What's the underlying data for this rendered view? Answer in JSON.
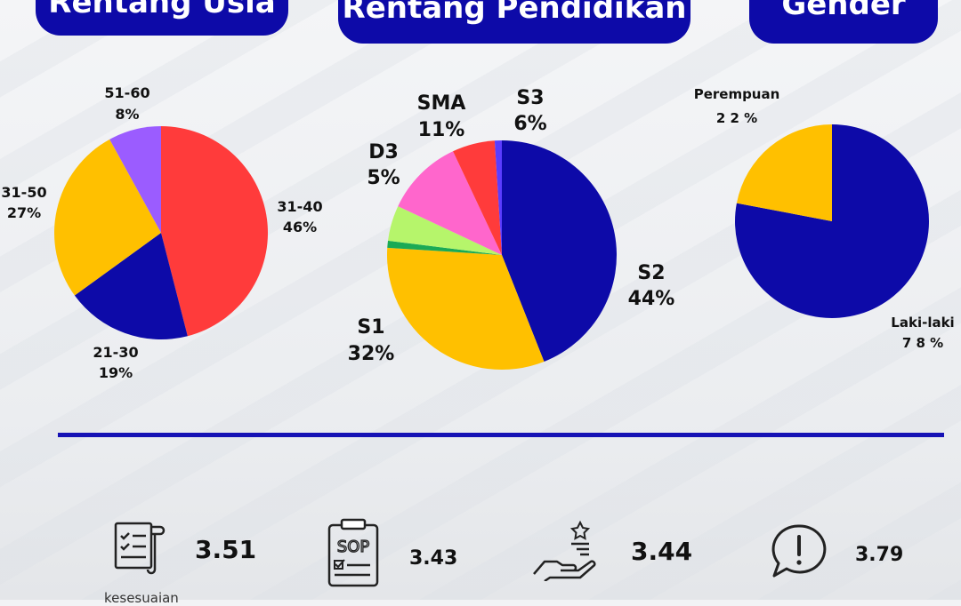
{
  "headers": {
    "age": "Rentang Usia",
    "education": "Rentang Pendidikan",
    "gender": "Gender"
  },
  "chart_data": [
    {
      "type": "pie",
      "title": "Rentang Usia",
      "categories": [
        "31-40",
        "21-30",
        "31-50",
        "51-60"
      ],
      "values": [
        46,
        19,
        27,
        8
      ],
      "labels": [
        "46%",
        "19%",
        "27%",
        "8%"
      ],
      "colors": [
        "#ff3b3b",
        "#0d0aa8",
        "#ffc000",
        "#9b5cff"
      ]
    },
    {
      "type": "pie",
      "title": "Rentang Pendidikan",
      "categories": [
        "S2",
        "S1",
        "",
        "D3",
        "SMA",
        "S3",
        ""
      ],
      "values": [
        44,
        32,
        1,
        5,
        11,
        6,
        1
      ],
      "labels": [
        "44%",
        "32%",
        "",
        "5%",
        "11%",
        "6%",
        ""
      ],
      "colors": [
        "#0d0aa8",
        "#ffc000",
        "#1aaa55",
        "#b6f56b",
        "#ff66cc",
        "#ff3b3b",
        "#5b3cff"
      ]
    },
    {
      "type": "pie",
      "title": "Gender",
      "categories": [
        "Laki-laki",
        "Perempuan"
      ],
      "values": [
        78,
        22
      ],
      "labels": [
        "7 8 %",
        "2 2 %"
      ],
      "colors": [
        "#0d0aa8",
        "#ffc000"
      ]
    }
  ],
  "metrics": [
    {
      "icon": "checklist-document-icon",
      "value": "3.51",
      "caption": "kesesuaian"
    },
    {
      "icon": "sop-clipboard-icon",
      "value": "3.43"
    },
    {
      "icon": "hand-star-service-icon",
      "value": "3.44"
    },
    {
      "icon": "complaint-speech-bubble-icon",
      "value": "3.79"
    }
  ]
}
